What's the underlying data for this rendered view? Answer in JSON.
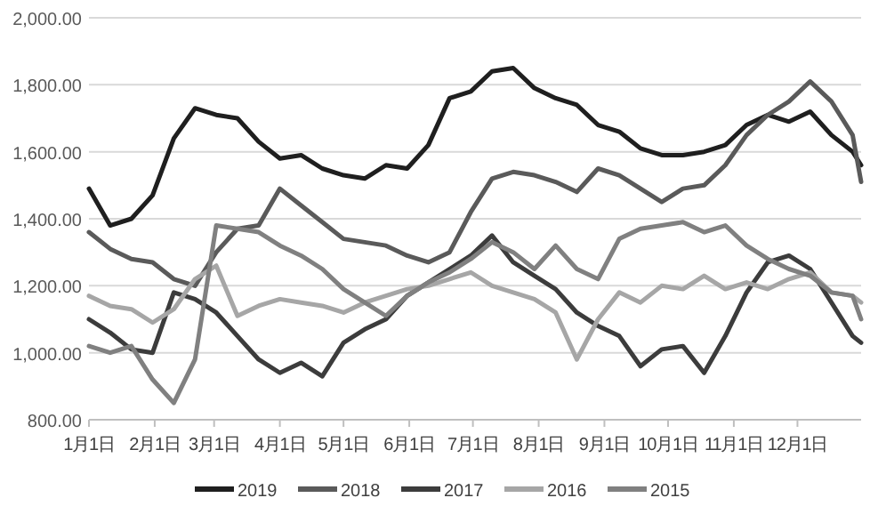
{
  "chart_data": {
    "type": "line",
    "xlim": [
      "--01-01",
      "--12-31"
    ],
    "ylim": [
      800,
      2000
    ],
    "grid": "y",
    "legend": "bottom",
    "xticks": [
      {
        "value": "--01-01",
        "label": "1月1日"
      },
      {
        "value": "--02-01",
        "label": "2月1日"
      },
      {
        "value": "--03-01",
        "label": "3月1日"
      },
      {
        "value": "--04-01",
        "label": "4月1日"
      },
      {
        "value": "--05-01",
        "label": "5月1日"
      },
      {
        "value": "--06-01",
        "label": "6月1日"
      },
      {
        "value": "--07-01",
        "label": "7月1日"
      },
      {
        "value": "--08-01",
        "label": "8月1日"
      },
      {
        "value": "--09-01",
        "label": "9月1日"
      },
      {
        "value": "--10-01",
        "label": "10月1日"
      },
      {
        "value": "--11-01",
        "label": "11月1日"
      },
      {
        "value": "--12-01",
        "label": "12月1日"
      }
    ],
    "yticks": [
      {
        "value": 800,
        "label": "800.00"
      },
      {
        "value": 1000,
        "label": "1,000.00"
      },
      {
        "value": 1200,
        "label": "1,200.00"
      },
      {
        "value": 1400,
        "label": "1,400.00"
      },
      {
        "value": 1600,
        "label": "1,600.00"
      },
      {
        "value": 1800,
        "label": "1,800.00"
      },
      {
        "value": 2000,
        "label": "2,000.00"
      }
    ],
    "x": [
      "--01-01",
      "--01-11",
      "--01-21",
      "--01-31",
      "--02-10",
      "--02-20",
      "--03-02",
      "--03-12",
      "--03-22",
      "--04-01",
      "--04-11",
      "--04-21",
      "--05-01",
      "--05-11",
      "--05-21",
      "--05-31",
      "--06-10",
      "--06-20",
      "--06-30",
      "--07-10",
      "--07-20",
      "--07-30",
      "--08-09",
      "--08-19",
      "--08-29",
      "--09-08",
      "--09-18",
      "--09-28",
      "--10-08",
      "--10-18",
      "--10-28",
      "--11-07",
      "--11-17",
      "--11-27",
      "--12-07",
      "--12-17",
      "--12-27",
      "--12-31"
    ],
    "series": [
      {
        "name": "2019",
        "color": "#1f1f1f",
        "values": [
          1490,
          1380,
          1400,
          1470,
          1640,
          1730,
          1710,
          1700,
          1630,
          1580,
          1590,
          1550,
          1530,
          1520,
          1560,
          1550,
          1620,
          1760,
          1780,
          1840,
          1850,
          1790,
          1760,
          1740,
          1680,
          1660,
          1610,
          1590,
          1590,
          1600,
          1620,
          1680,
          1710,
          1690,
          1720,
          1650,
          1600,
          1560
        ]
      },
      {
        "name": "2018",
        "color": "#5a5a5a",
        "values": [
          1360,
          1310,
          1280,
          1270,
          1220,
          1200,
          1300,
          1370,
          1380,
          1490,
          1440,
          1390,
          1340,
          1330,
          1320,
          1290,
          1270,
          1300,
          1420,
          1520,
          1540,
          1530,
          1510,
          1480,
          1550,
          1530,
          1490,
          1450,
          1490,
          1500,
          1560,
          1650,
          1710,
          1750,
          1810,
          1750,
          1650,
          1510
        ]
      },
      {
        "name": "2017",
        "color": "#3c3c3c",
        "values": [
          1100,
          1060,
          1010,
          1000,
          1180,
          1160,
          1120,
          1050,
          980,
          940,
          970,
          930,
          1030,
          1070,
          1100,
          1170,
          1210,
          1250,
          1290,
          1350,
          1270,
          1230,
          1190,
          1120,
          1080,
          1050,
          960,
          1010,
          1020,
          940,
          1050,
          1180,
          1270,
          1290,
          1250,
          1150,
          1050,
          1030
        ]
      },
      {
        "name": "2016",
        "color": "#a6a6a6",
        "values": [
          1170,
          1140,
          1130,
          1090,
          1130,
          1220,
          1260,
          1110,
          1140,
          1160,
          1150,
          1140,
          1120,
          1150,
          1170,
          1190,
          1200,
          1220,
          1240,
          1200,
          1180,
          1160,
          1120,
          980,
          1100,
          1180,
          1150,
          1200,
          1190,
          1230,
          1190,
          1210,
          1190,
          1220,
          1240,
          1180,
          1170,
          1150
        ]
      },
      {
        "name": "2015",
        "color": "#808080",
        "values": [
          1020,
          1000,
          1020,
          920,
          850,
          980,
          1380,
          1370,
          1360,
          1320,
          1290,
          1250,
          1190,
          1150,
          1110,
          1170,
          1210,
          1240,
          1280,
          1330,
          1300,
          1250,
          1320,
          1250,
          1220,
          1340,
          1370,
          1380,
          1390,
          1360,
          1380,
          1320,
          1280,
          1250,
          1230,
          1180,
          1170,
          1100
        ]
      }
    ]
  }
}
